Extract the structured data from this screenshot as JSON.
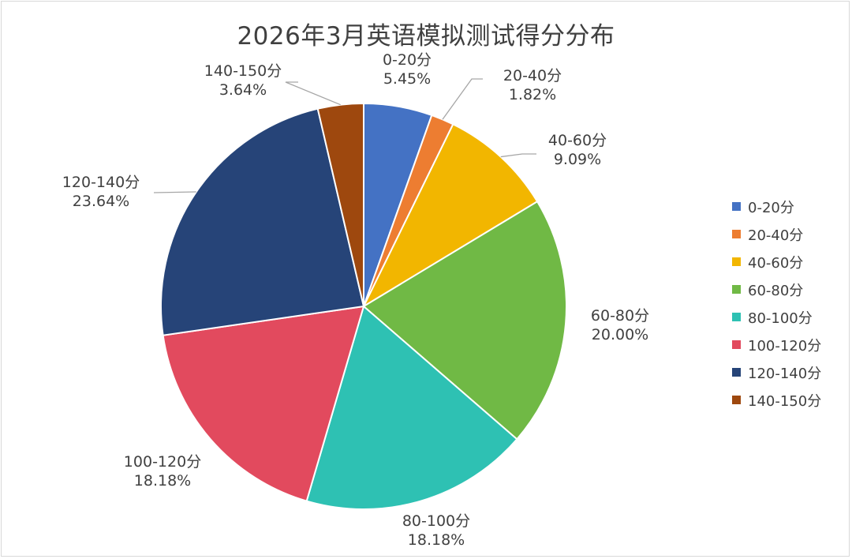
{
  "chart_data": {
    "type": "pie",
    "title": "2026年3月英语模拟测试得分分布",
    "categories": [
      "0-20分",
      "20-40分",
      "40-60分",
      "60-80分",
      "80-100分",
      "100-120分",
      "120-140分",
      "140-150分"
    ],
    "values": [
      5.45,
      1.82,
      9.09,
      20.0,
      18.18,
      18.18,
      23.64,
      3.64
    ],
    "value_labels": [
      "5.45%",
      "1.82%",
      "9.09%",
      "20.00%",
      "18.18%",
      "18.18%",
      "23.64%",
      "3.64%"
    ],
    "colors": [
      "#4472c4",
      "#ed7d31",
      "#f2b600",
      "#70b945",
      "#2ec1b3",
      "#e24a5e",
      "#264478",
      "#9e480e"
    ],
    "start_angle_deg": 0,
    "direction": "clockwise",
    "legend_position": "right",
    "data_labels": "category name and percentage, outside with leader lines"
  },
  "labels": [
    {
      "name": "0-20分",
      "pct": "5.45%"
    },
    {
      "name": "20-40分",
      "pct": "1.82%"
    },
    {
      "name": "40-60分",
      "pct": "9.09%"
    },
    {
      "name": "60-80分",
      "pct": "20.00%"
    },
    {
      "name": "80-100分",
      "pct": "18.18%"
    },
    {
      "name": "100-120分",
      "pct": "18.18%"
    },
    {
      "name": "120-140分",
      "pct": "23.64%"
    },
    {
      "name": "140-150分",
      "pct": "3.64%"
    }
  ],
  "legend": [
    {
      "label": "0-20分",
      "color": "#4472c4"
    },
    {
      "label": "20-40分",
      "color": "#ed7d31"
    },
    {
      "label": "40-60分",
      "color": "#f2b600"
    },
    {
      "label": "60-80分",
      "color": "#70b945"
    },
    {
      "label": "80-100分",
      "color": "#2ec1b3"
    },
    {
      "label": "100-120分",
      "color": "#e24a5e"
    },
    {
      "label": "120-140分",
      "color": "#264478"
    },
    {
      "label": "140-150分",
      "color": "#9e480e"
    }
  ]
}
